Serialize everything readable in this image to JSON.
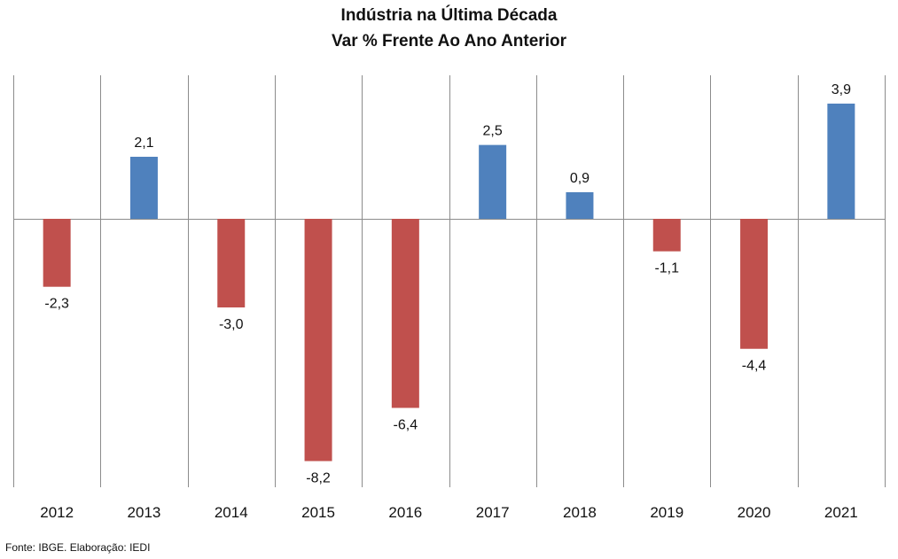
{
  "chart_data": {
    "type": "bar",
    "title": "Indústria na Última Década",
    "subtitle": "Var % Frente Ao Ano Anterior",
    "categories": [
      "2012",
      "2013",
      "2014",
      "2015",
      "2016",
      "2017",
      "2018",
      "2019",
      "2020",
      "2021"
    ],
    "values": [
      -2.3,
      2.1,
      -3.0,
      -8.2,
      -6.4,
      2.5,
      0.9,
      -1.1,
      -4.4,
      3.9
    ],
    "data_labels": [
      "-2,3",
      "2,1",
      "-3,0",
      "-8,2",
      "-6,4",
      "2,5",
      "0,9",
      "-1,1",
      "-4,4",
      "3,9"
    ],
    "ylim": [
      -9.2,
      4.9
    ],
    "colors": {
      "positive": "#4f81bd",
      "negative": "#c0504d"
    },
    "grid": "vertical category separators",
    "legend": "none"
  },
  "source": "Fonte: IBGE. Elaboração: IEDI"
}
